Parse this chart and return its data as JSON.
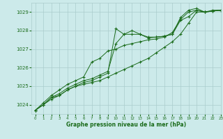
{
  "title": "Graphe pression niveau de la mer (hPa)",
  "background_color": "#cceaea",
  "plot_bg_color": "#cceaea",
  "grid_color": "#aacccc",
  "line_color": "#1a6b1a",
  "marker": "+",
  "xlim": [
    -0.5,
    23
  ],
  "ylim": [
    1023.5,
    1029.5
  ],
  "yticks": [
    1024,
    1025,
    1026,
    1027,
    1028,
    1029
  ],
  "xticks": [
    0,
    1,
    2,
    3,
    4,
    5,
    6,
    7,
    8,
    9,
    10,
    11,
    12,
    13,
    14,
    15,
    16,
    17,
    18,
    19,
    20,
    21,
    22,
    23
  ],
  "series": [
    [
      1023.7,
      1024.0,
      1024.4,
      1024.5,
      1024.8,
      1025.0,
      1025.2,
      1025.3,
      1025.5,
      1025.7,
      1028.1,
      1027.8,
      1028.0,
      1027.8,
      1027.6,
      1027.65,
      1027.7,
      1027.8,
      1028.7,
      1029.1,
      1029.2,
      1029.0,
      1029.1,
      1029.1
    ],
    [
      1023.7,
      1024.0,
      1024.4,
      1024.6,
      1024.9,
      1025.1,
      1025.3,
      1025.4,
      1025.6,
      1025.8,
      1027.3,
      1027.8,
      1027.8,
      1027.8,
      1027.65,
      1027.65,
      1027.7,
      1027.8,
      1028.55,
      1028.75,
      1029.1,
      1029.0,
      1029.05,
      1029.1
    ],
    [
      1023.7,
      1024.0,
      1024.3,
      1024.5,
      1024.8,
      1025.0,
      1025.1,
      1025.2,
      1025.3,
      1025.5,
      1025.7,
      1025.9,
      1026.1,
      1026.3,
      1026.5,
      1026.8,
      1027.1,
      1027.4,
      1027.8,
      1028.4,
      1029.0,
      1029.0,
      1029.05,
      1029.1
    ],
    [
      1023.7,
      1024.1,
      1024.5,
      1024.8,
      1025.1,
      1025.3,
      1025.5,
      1026.3,
      1026.5,
      1026.9,
      1027.0,
      1027.2,
      1027.3,
      1027.4,
      1027.5,
      1027.55,
      1027.65,
      1027.9,
      1028.6,
      1029.0,
      1029.1,
      1029.0,
      1029.05,
      1029.1
    ]
  ]
}
